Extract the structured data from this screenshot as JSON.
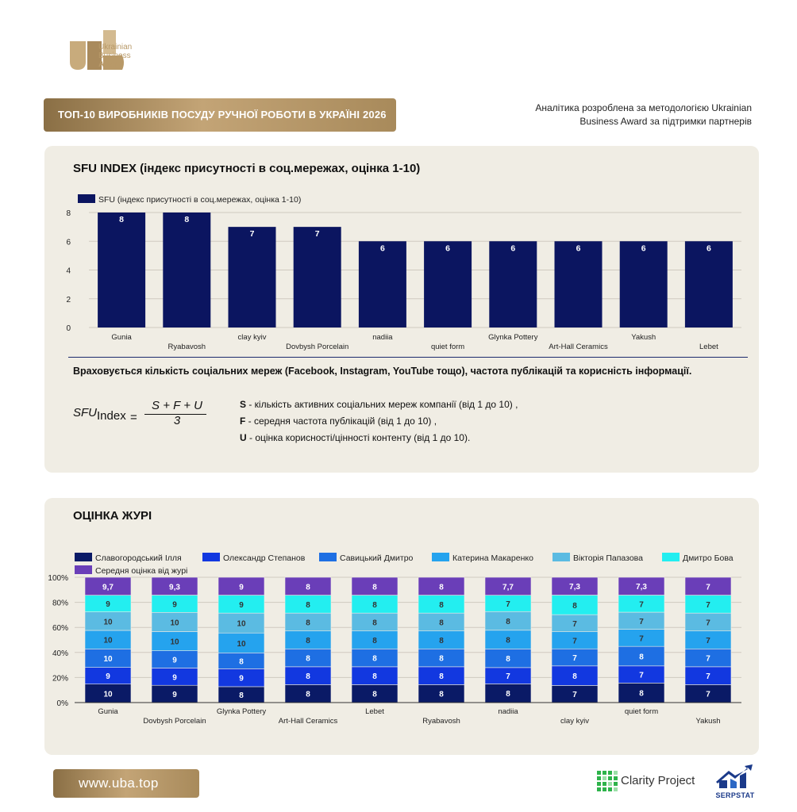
{
  "logo": {
    "line1": "Ukrainian",
    "line2": "Business",
    "line3": "Award"
  },
  "header": {
    "title": "ТОП-10 ВИРОБНИКІВ ПОСУДУ РУЧНОЇ РОБОТИ В УКРАЇНІ 2026",
    "analytics_line1": "Аналітика розроблена за методологією Ukrainian",
    "analytics_line2": "Business Award за підтримки партнерів"
  },
  "sfu_section": {
    "title": "SFU INDEX (індекс присутності в соц.мережах, оцінка 1-10)",
    "considered": "Враховується кількість соціальних мереж (Facebook, Instagram, YouTube тощо), частота публікацій та корисність інформації.",
    "formula": {
      "lhs": "SFU",
      "lhs_sub": "Index",
      "eq": "=",
      "numerator": "S + F + U",
      "denominator": "3"
    },
    "notes": [
      {
        "key": "S",
        "text": " - кількість активних соціальних мереж компанії (від 1 до 10) ,"
      },
      {
        "key": "F",
        "text": " - середня частота публікацій (від 1 до 10) ,"
      },
      {
        "key": "U",
        "text": " - оцінка корисності/цінності контенту (від 1 до 10)."
      }
    ]
  },
  "jury_section": {
    "title": "ОЦІНКА ЖУРІ"
  },
  "chart_data": [
    {
      "type": "bar",
      "title": "",
      "categories": [
        "Gunia",
        "Ryabavosh",
        "clay kyiv",
        "Dovbysh Porcelain",
        "nadiia",
        "quiet form",
        "Glynka Pottery",
        "Art-Hall Ceramics",
        "Yakush",
        "Lebet"
      ],
      "series": [
        {
          "name": "SFU (індекс присутності в соц.мережах, оцінка 1-10)",
          "values": [
            8,
            8,
            7,
            7,
            6,
            6,
            6,
            6,
            6,
            6
          ],
          "color": "#0b1560"
        }
      ],
      "ylim": [
        0,
        8
      ],
      "yticks": [
        "0",
        "2",
        "4",
        "6",
        "8"
      ],
      "grid": true,
      "legend": "top-left"
    },
    {
      "type": "bar",
      "stacked": "percent",
      "title": "",
      "categories": [
        "Gunia",
        "Dovbysh Porcelain",
        "Glynka Pottery",
        "Art-Hall Ceramics",
        "Lebet",
        "Ryabavosh",
        "nadiia",
        "clay kyiv",
        "quiet form",
        "Yakush"
      ],
      "series": [
        {
          "name": "Славогородський Ілля",
          "values": [
            "10",
            "9",
            "8",
            "8",
            "8",
            "8",
            "8",
            "7",
            "8",
            "7"
          ],
          "color": "#0a1a66"
        },
        {
          "name": "Олександр Степанов",
          "values": [
            "9",
            "9",
            "9",
            "8",
            "8",
            "8",
            "7",
            "8",
            "7",
            "7"
          ],
          "color": "#1238e0"
        },
        {
          "name": "Савицький Дмитро",
          "values": [
            "10",
            "9",
            "8",
            "8",
            "8",
            "8",
            "8",
            "7",
            "8",
            "7"
          ],
          "color": "#1e6fe3"
        },
        {
          "name": "Катерина Макаренко",
          "values": [
            "10",
            "10",
            "10",
            "8",
            "8",
            "8",
            "8",
            "7",
            "7",
            "7"
          ],
          "color": "#25a3ee"
        },
        {
          "name": "Вікторія Папазова",
          "values": [
            "10",
            "10",
            "10",
            "8",
            "8",
            "8",
            "8",
            "7",
            "7",
            "7"
          ],
          "color": "#5bbbe2"
        },
        {
          "name": "Дмитро Бова",
          "values": [
            "9",
            "9",
            "9",
            "8",
            "8",
            "8",
            "7",
            "8",
            "7",
            "7"
          ],
          "color": "#23eef0"
        },
        {
          "name": "Середня оцінка від журі",
          "values": [
            "9,7",
            "9,3",
            "9",
            "8",
            "8",
            "8",
            "7,7",
            "7,3",
            "7,3",
            "7"
          ],
          "color": "#6a3eb8"
        }
      ],
      "yticks": [
        "0%",
        "20%",
        "40%",
        "60%",
        "80%",
        "100%"
      ],
      "ylim": [
        0,
        100
      ],
      "grid": true,
      "legend": "top"
    }
  ],
  "footer": {
    "site": "www.uba.top",
    "clarity": "Clarity Project",
    "serpstat": "SERPSTAT"
  }
}
